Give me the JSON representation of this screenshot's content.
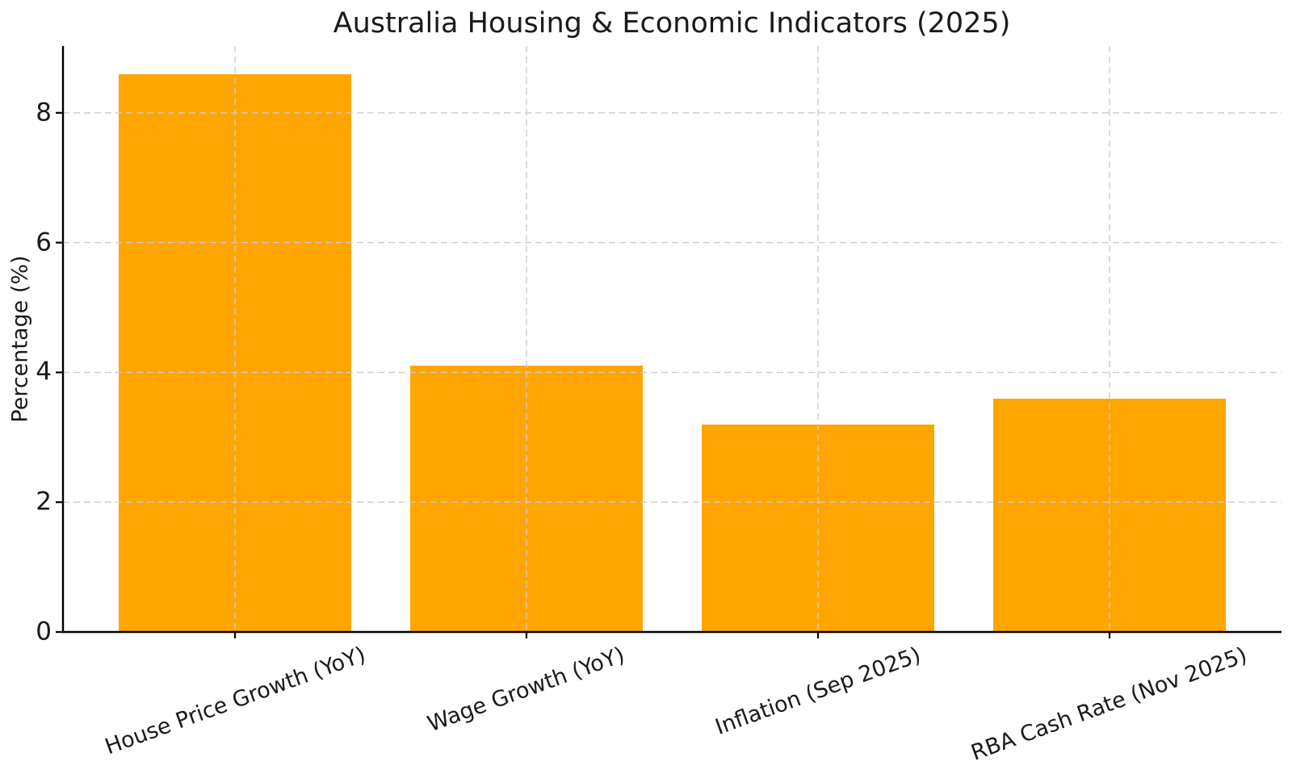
{
  "figure": {
    "background": "#ffffff",
    "text_color": "#1a1a1a"
  },
  "chart_data": {
    "type": "bar",
    "title": "Australia Housing & Economic Indicators (2025)",
    "xlabel": "",
    "ylabel": "Percentage (%)",
    "categories": [
      "House Price Growth (YoY)",
      "Wage Growth (YoY)",
      "Inflation (Sep 2025)",
      "RBA Cash Rate (Nov 2025)"
    ],
    "values": [
      8.6,
      4.1,
      3.2,
      3.6
    ],
    "yticks": [
      0,
      2,
      4,
      6,
      8
    ],
    "ylim": [
      0,
      9.03
    ],
    "bar_color": "#FFA500",
    "bar_width_fraction": 0.8,
    "grid": true,
    "grid_style": "dashed",
    "grid_color": "#cccccc",
    "axis_color": "#000000",
    "x_tick_rotation_deg": 20,
    "legend_position": "none"
  }
}
